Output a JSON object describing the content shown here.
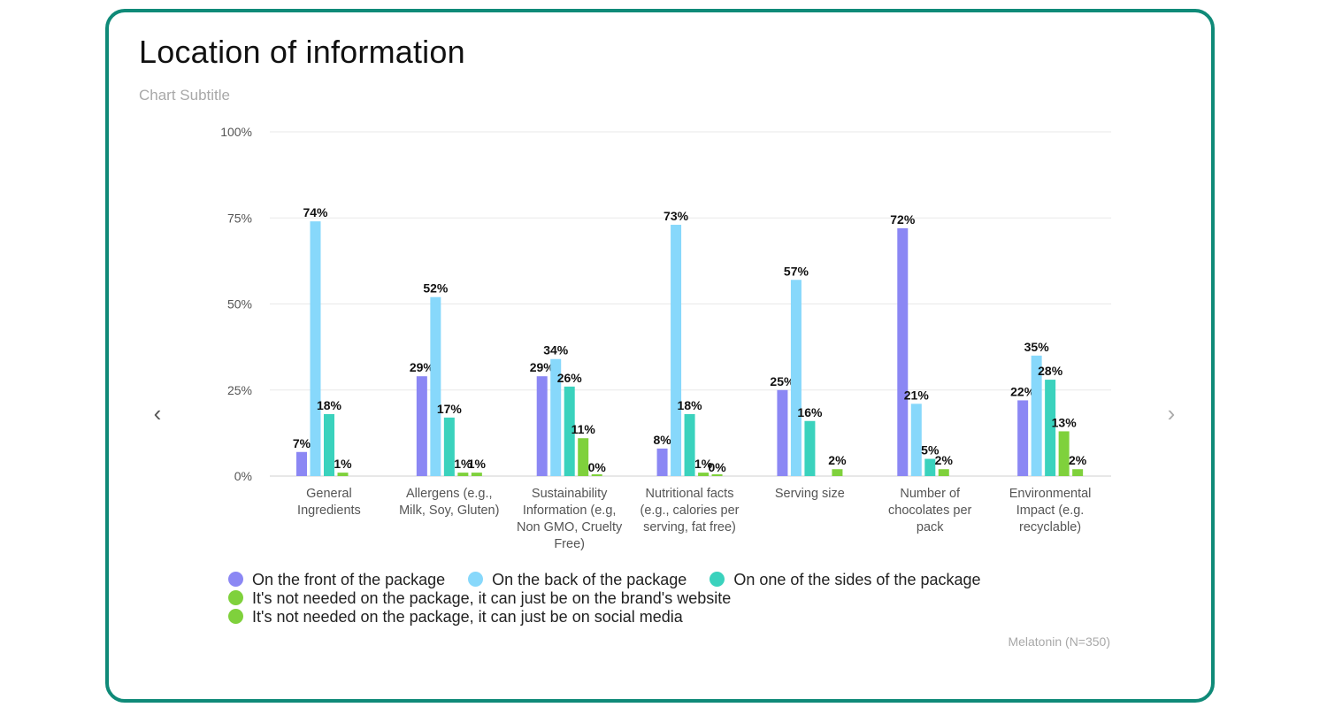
{
  "card": {
    "title": "Location of information",
    "subtitle": "Chart Subtitle",
    "footnote": "Melatonin (N=350)",
    "nav_prev": "‹",
    "nav_next": "›"
  },
  "colors": [
    "#8b87f4",
    "#87d8fb",
    "#3ad2bd",
    "#7fd13c",
    "#7fd13c"
  ],
  "chart_data": {
    "type": "bar",
    "title": "Location of information",
    "subtitle": "Chart Subtitle",
    "categories": [
      [
        "General",
        "Ingredients"
      ],
      [
        "Allergens (e.g.,",
        "Milk, Soy, Gluten)"
      ],
      [
        "Sustainability",
        "Information (e.g,",
        "Non GMO, Cruelty",
        "Free)"
      ],
      [
        "Nutritional facts",
        "(e.g., calories per",
        "serving, fat free)"
      ],
      [
        "Serving size"
      ],
      [
        "Number of",
        "chocolates per",
        "pack"
      ],
      [
        "Environmental",
        "Impact (e.g.",
        "recyclable)"
      ]
    ],
    "series": [
      {
        "name": "On the front of the package",
        "values": [
          7,
          29,
          29,
          8,
          25,
          72,
          22
        ]
      },
      {
        "name": "On the back of the package",
        "values": [
          74,
          52,
          34,
          73,
          57,
          21,
          35
        ]
      },
      {
        "name": "On one of the sides of the package",
        "values": [
          18,
          17,
          26,
          18,
          16,
          5,
          28
        ]
      },
      {
        "name": "It's not needed on the package, it can just be on the brand's website",
        "values": [
          1,
          1,
          11,
          1,
          null,
          2,
          13
        ]
      },
      {
        "name": "It's not needed on the package, it can just be on social media",
        "values": [
          null,
          1,
          0,
          0,
          2,
          null,
          2
        ]
      }
    ],
    "yticks": [
      "0%",
      "25%",
      "50%",
      "75%",
      "100%"
    ],
    "ylim": [
      0,
      100
    ],
    "grid": true,
    "legend_position": "bottom-left"
  }
}
